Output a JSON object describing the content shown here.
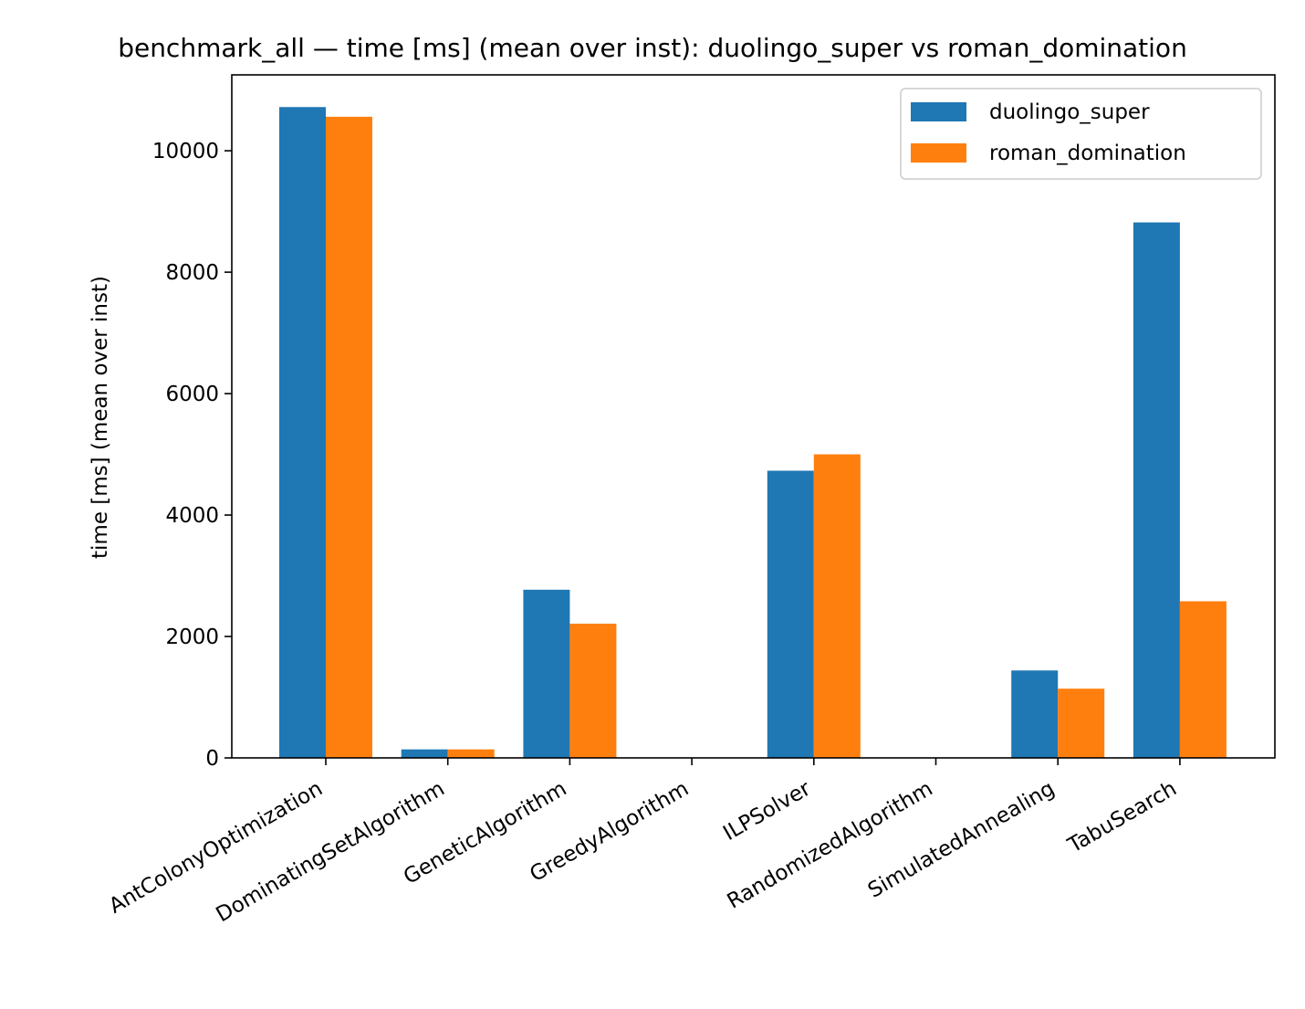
{
  "chart_data": {
    "type": "bar",
    "title": "benchmark_all — time [ms] (mean over inst): duolingo_super vs roman_domination",
    "xlabel": "",
    "ylabel": "time [ms] (mean over inst)",
    "categories": [
      "AntColonyOptimization",
      "DominatingSetAlgorithm",
      "GeneticAlgorithm",
      "GreedyAlgorithm",
      "ILPSolver",
      "RandomizedAlgorithm",
      "SimulatedAnnealing",
      "TabuSearch"
    ],
    "series": [
      {
        "name": "duolingo_super",
        "color": "#1f77b4",
        "values": [
          10720,
          140,
          2770,
          0,
          4730,
          0,
          1440,
          8820
        ]
      },
      {
        "name": "roman_domination",
        "color": "#ff7f0e",
        "values": [
          10560,
          140,
          2210,
          0,
          5000,
          0,
          1140,
          2580
        ]
      }
    ],
    "ylim": [
      0,
      11250
    ],
    "yticks": [
      0,
      2000,
      4000,
      6000,
      8000,
      10000
    ],
    "grid": false,
    "legend_position": "top-right"
  }
}
